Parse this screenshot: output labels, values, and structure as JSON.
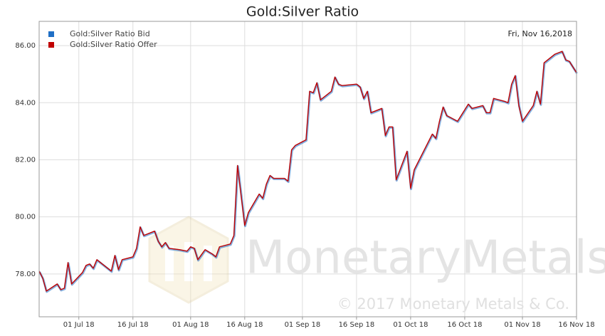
{
  "chart_data": {
    "type": "line",
    "title": "Gold:Silver Ratio",
    "annotation": "Fri, Nov 16,2018",
    "watermark": "MonetaryMetals",
    "copyright": "© 2017 Monetary Metals & Co.",
    "grid": true,
    "legend": "top-left",
    "xlim": [
      "2018-06-20",
      "2018-11-16"
    ],
    "xticks": [
      {
        "value": "2018-07-01",
        "label": "01 Jul 18"
      },
      {
        "value": "2018-07-16",
        "label": "16 Jul 18"
      },
      {
        "value": "2018-08-01",
        "label": "01 Aug 18"
      },
      {
        "value": "2018-08-16",
        "label": "16 Aug 18"
      },
      {
        "value": "2018-09-01",
        "label": "01 Sep 18"
      },
      {
        "value": "2018-09-16",
        "label": "16 Sep 18"
      },
      {
        "value": "2018-10-01",
        "label": "01 Oct 18"
      },
      {
        "value": "2018-10-16",
        "label": "16 Oct 18"
      },
      {
        "value": "2018-11-01",
        "label": "01 Nov 18"
      },
      {
        "value": "2018-11-16",
        "label": "16 Nov 18"
      }
    ],
    "ylim": [
      76.5,
      86.85
    ],
    "yticks": [
      {
        "value": 78,
        "label": "78.00"
      },
      {
        "value": 80,
        "label": "80.00"
      },
      {
        "value": 82,
        "label": "82.00"
      },
      {
        "value": 84,
        "label": "84.00"
      },
      {
        "value": 86,
        "label": "86.00"
      }
    ],
    "x": [
      "2018-06-20",
      "2018-06-21",
      "2018-06-22",
      "2018-06-25",
      "2018-06-26",
      "2018-06-27",
      "2018-06-28",
      "2018-06-29",
      "2018-07-02",
      "2018-07-03",
      "2018-07-04",
      "2018-07-05",
      "2018-07-06",
      "2018-07-09",
      "2018-07-10",
      "2018-07-11",
      "2018-07-12",
      "2018-07-13",
      "2018-07-16",
      "2018-07-17",
      "2018-07-18",
      "2018-07-19",
      "2018-07-22",
      "2018-07-23",
      "2018-07-24",
      "2018-07-25",
      "2018-07-26",
      "2018-07-29",
      "2018-07-31",
      "2018-08-01",
      "2018-08-02",
      "2018-08-03",
      "2018-08-05",
      "2018-08-07",
      "2018-08-08",
      "2018-08-09",
      "2018-08-12",
      "2018-08-13",
      "2018-08-14",
      "2018-08-16",
      "2018-08-17",
      "2018-08-20",
      "2018-08-21",
      "2018-08-22",
      "2018-08-23",
      "2018-08-24",
      "2018-08-27",
      "2018-08-28",
      "2018-08-29",
      "2018-08-30",
      "2018-09-02",
      "2018-09-03",
      "2018-09-04",
      "2018-09-05",
      "2018-09-06",
      "2018-09-09",
      "2018-09-10",
      "2018-09-11",
      "2018-09-12",
      "2018-09-16",
      "2018-09-17",
      "2018-09-18",
      "2018-09-19",
      "2018-09-20",
      "2018-09-23",
      "2018-09-24",
      "2018-09-25",
      "2018-09-26",
      "2018-09-27",
      "2018-09-30",
      "2018-10-01",
      "2018-10-02",
      "2018-10-07",
      "2018-10-08",
      "2018-10-09",
      "2018-10-10",
      "2018-10-11",
      "2018-10-14",
      "2018-10-15",
      "2018-10-17",
      "2018-10-18",
      "2018-10-21",
      "2018-10-22",
      "2018-10-23",
      "2018-10-24",
      "2018-10-27",
      "2018-10-28",
      "2018-10-29",
      "2018-10-30",
      "2018-10-31",
      "2018-11-01",
      "2018-11-04",
      "2018-11-05",
      "2018-11-06",
      "2018-11-07",
      "2018-11-10",
      "2018-11-12",
      "2018-11-13",
      "2018-11-14",
      "2018-11-16"
    ],
    "series": [
      {
        "name": "Gold:Silver Ratio Bid",
        "color": "#1f6fc5",
        "values": [
          78.1,
          77.85,
          77.4,
          77.65,
          77.45,
          77.5,
          78.4,
          77.65,
          78.05,
          78.3,
          78.35,
          78.2,
          78.5,
          78.2,
          78.1,
          78.65,
          78.15,
          78.5,
          78.6,
          78.9,
          79.65,
          79.35,
          79.5,
          79.15,
          78.95,
          79.1,
          78.9,
          78.85,
          78.8,
          78.95,
          78.9,
          78.5,
          78.85,
          78.7,
          78.6,
          78.95,
          79.05,
          79.35,
          81.8,
          79.7,
          80.15,
          80.8,
          80.65,
          81.15,
          81.45,
          81.35,
          81.35,
          81.25,
          82.35,
          82.5,
          82.7,
          84.4,
          84.35,
          84.7,
          84.1,
          84.4,
          84.9,
          84.65,
          84.6,
          84.65,
          84.55,
          84.15,
          84.4,
          83.65,
          83.8,
          82.85,
          83.15,
          83.15,
          81.3,
          82.3,
          81.0,
          81.65,
          82.9,
          82.75,
          83.35,
          83.85,
          83.55,
          83.35,
          83.55,
          83.95,
          83.8,
          83.9,
          83.65,
          83.65,
          84.15,
          84.05,
          84.0,
          84.65,
          84.95,
          83.9,
          83.35,
          83.9,
          84.4,
          83.95,
          85.4,
          85.7,
          85.8,
          85.5,
          85.45,
          85.05
        ]
      },
      {
        "name": "Gold:Silver Ratio Offer",
        "color": "#c00000",
        "values": [
          78.1,
          77.85,
          77.4,
          77.65,
          77.45,
          77.5,
          78.4,
          77.65,
          78.05,
          78.3,
          78.35,
          78.2,
          78.5,
          78.2,
          78.1,
          78.65,
          78.15,
          78.5,
          78.6,
          78.9,
          79.65,
          79.35,
          79.5,
          79.15,
          78.95,
          79.1,
          78.9,
          78.85,
          78.8,
          78.95,
          78.9,
          78.5,
          78.85,
          78.7,
          78.6,
          78.95,
          79.05,
          79.35,
          81.8,
          79.7,
          80.15,
          80.8,
          80.65,
          81.15,
          81.45,
          81.35,
          81.35,
          81.25,
          82.35,
          82.5,
          82.7,
          84.4,
          84.35,
          84.7,
          84.1,
          84.4,
          84.9,
          84.65,
          84.6,
          84.65,
          84.55,
          84.15,
          84.4,
          83.65,
          83.8,
          82.85,
          83.15,
          83.15,
          81.3,
          82.3,
          81.0,
          81.65,
          82.9,
          82.75,
          83.35,
          83.85,
          83.55,
          83.35,
          83.55,
          83.95,
          83.8,
          83.9,
          83.65,
          83.65,
          84.15,
          84.05,
          84.0,
          84.65,
          84.95,
          83.9,
          83.35,
          83.9,
          84.4,
          83.95,
          85.4,
          85.7,
          85.8,
          85.5,
          85.45,
          85.05
        ]
      }
    ]
  }
}
